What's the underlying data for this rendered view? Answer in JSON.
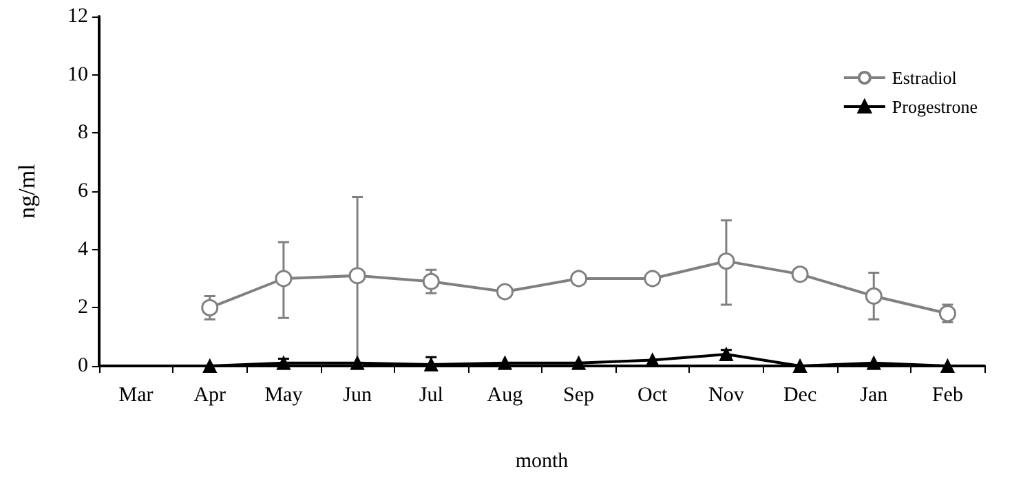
{
  "chart_data": {
    "type": "line",
    "xlabel": "month",
    "ylabel": "ng/ml",
    "categories": [
      "Mar",
      "Apr",
      "May",
      "Jun",
      "Jul",
      "Aug",
      "Sep",
      "Oct",
      "Nov",
      "Dec",
      "Jan",
      "Feb"
    ],
    "ylim": [
      0,
      12
    ],
    "yticks": [
      0,
      2,
      4,
      6,
      8,
      10,
      12
    ],
    "grid": false,
    "legend": "top right",
    "series": [
      {
        "name": "Estradiol",
        "color": "#808080",
        "marker": "circle",
        "line_style": "solid",
        "values": [
          null,
          2.0,
          3.0,
          3.1,
          2.9,
          2.55,
          3.0,
          3.0,
          3.6,
          3.15,
          2.4,
          1.8
        ],
        "errors": [
          null,
          [
            1.6,
            2.4
          ],
          [
            1.65,
            4.25
          ],
          [
            0.05,
            5.8
          ],
          [
            2.5,
            3.3
          ],
          null,
          null,
          null,
          [
            2.1,
            5.0
          ],
          null,
          [
            1.6,
            3.2
          ],
          [
            1.5,
            2.1
          ]
        ]
      },
      {
        "name": "Progestrone",
        "color": "#000000",
        "marker": "triangle",
        "line_style": "solid",
        "values": [
          null,
          0,
          0.1,
          0.1,
          0.05,
          0.1,
          0.1,
          0.2,
          0.4,
          0,
          0.1,
          0
        ],
        "errors": [
          null,
          null,
          [
            0,
            0.25
          ],
          null,
          [
            0,
            0.3
          ],
          null,
          null,
          null,
          [
            0.3,
            0.55
          ],
          null,
          null,
          null
        ]
      }
    ]
  }
}
